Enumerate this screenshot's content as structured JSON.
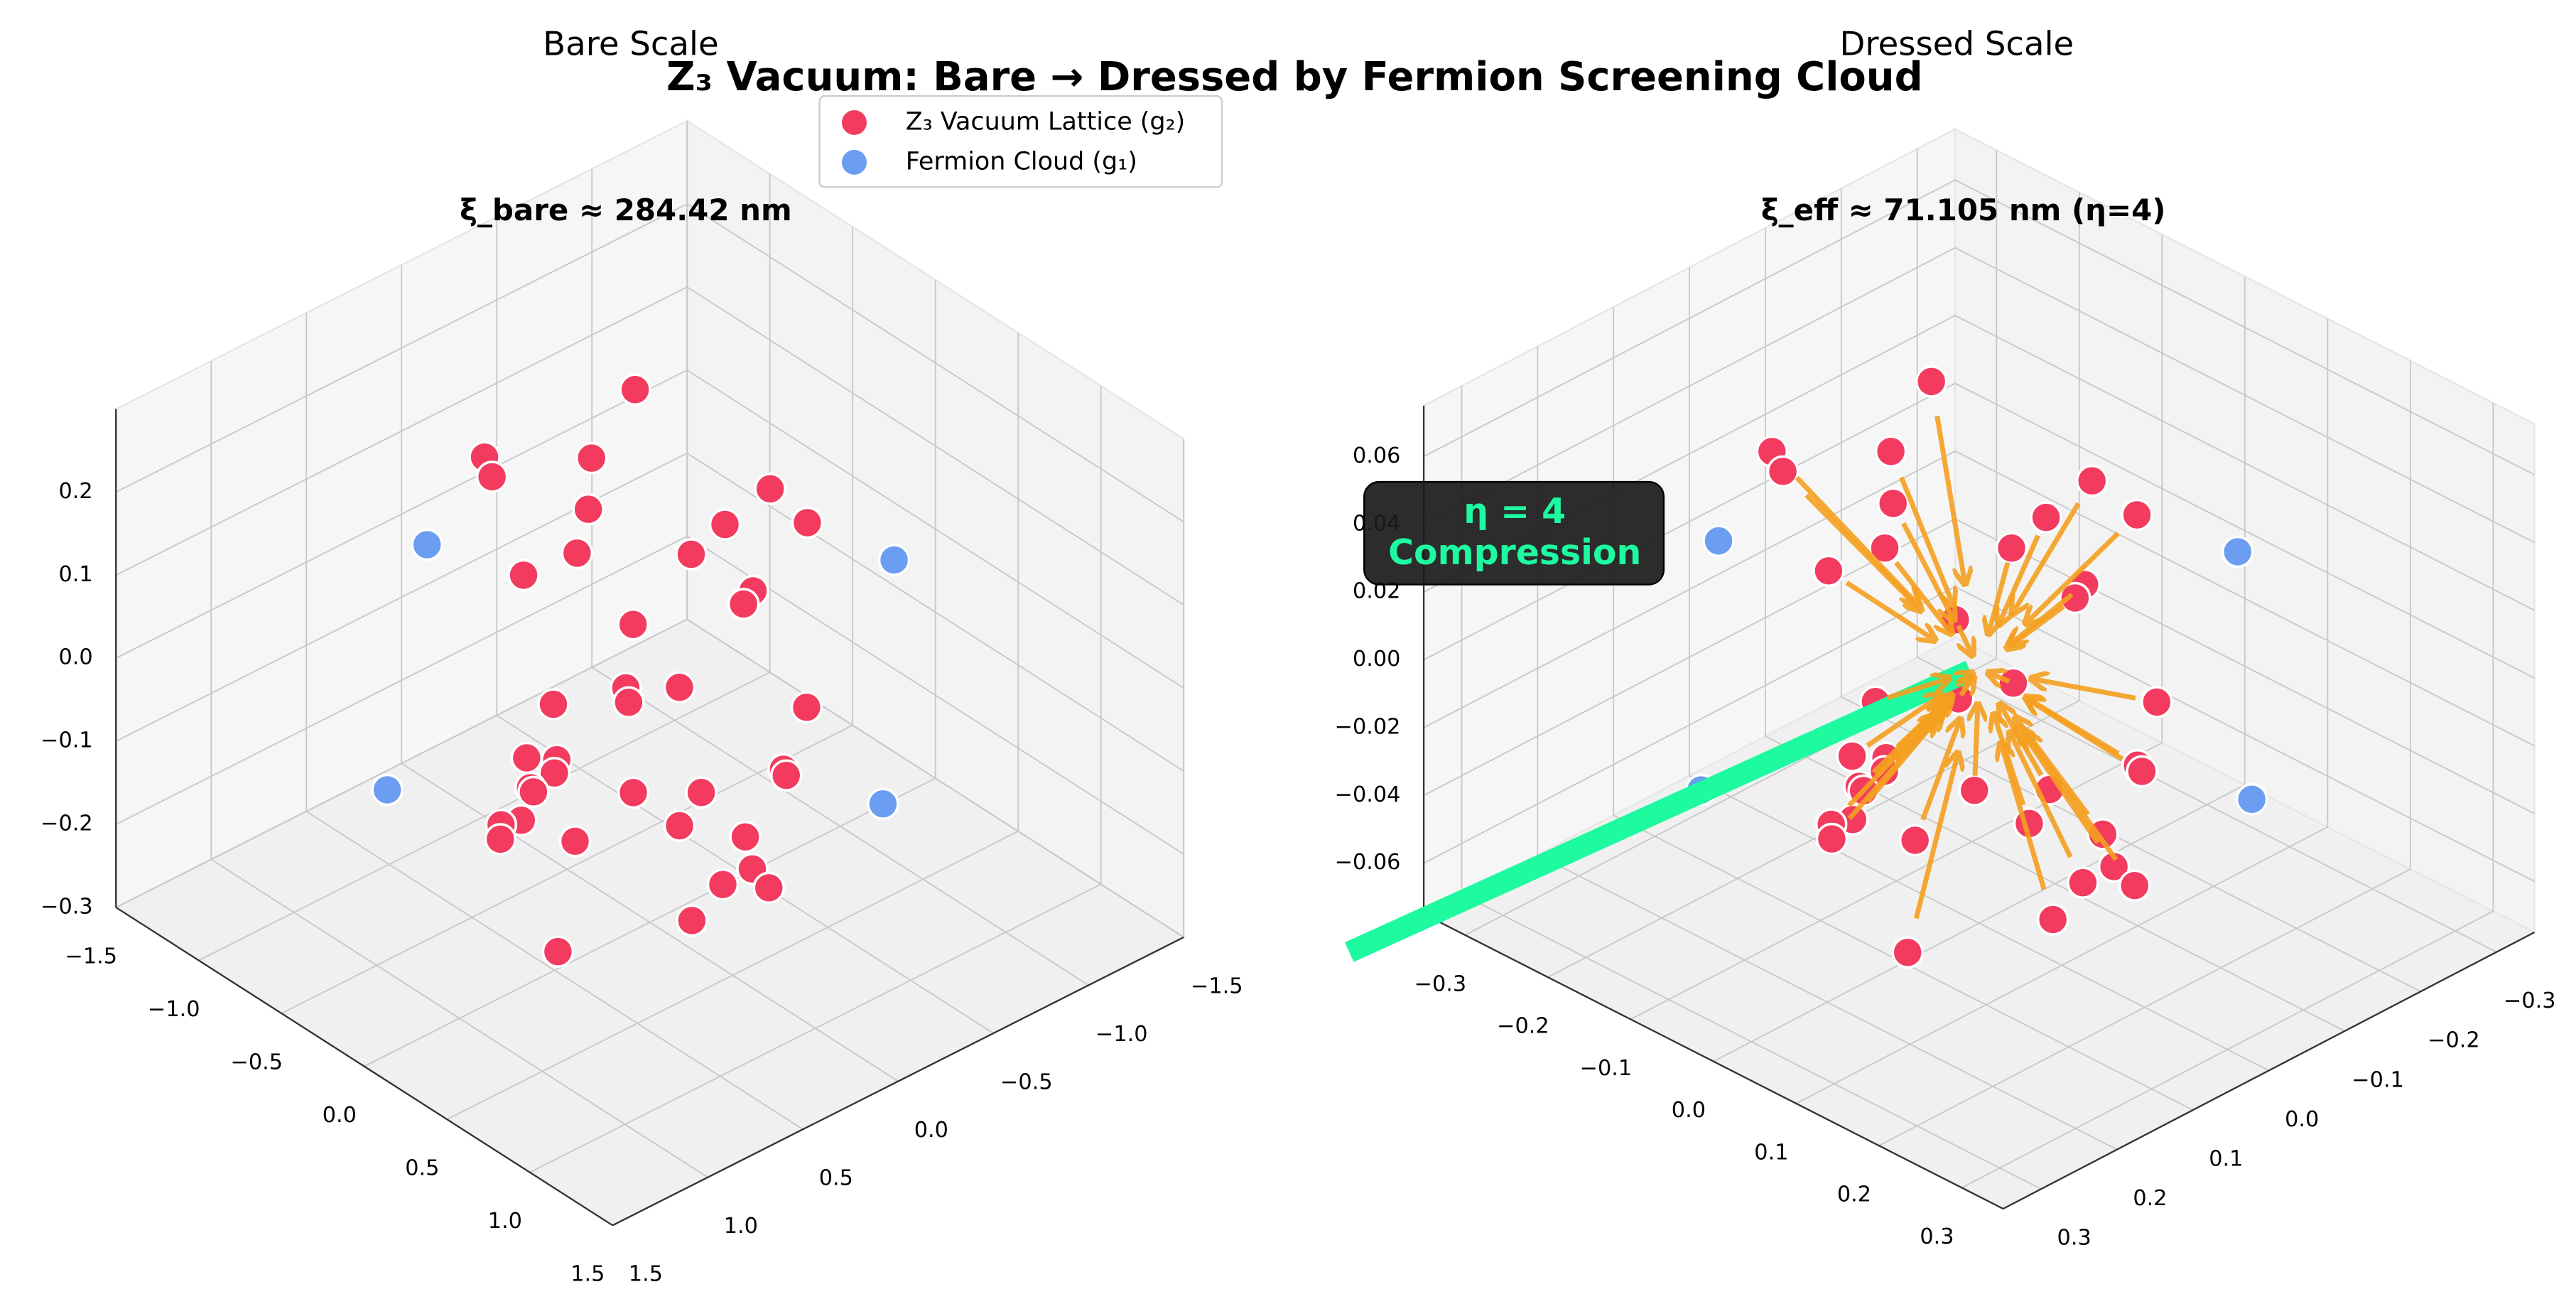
{
  "title": "Z₃ Vacuum: Bare → Dressed by Fermion Screening Cloud",
  "legend": "upper center",
  "chart_data": [
    {
      "type": "scatter3d",
      "title": "Bare Scale",
      "subtitle": "ξ_bare ≈ 284.42 nm",
      "xlim": [
        -1.5,
        1.5
      ],
      "ylim": [
        -1.5,
        1.5
      ],
      "zlim": [
        -0.3,
        0.3
      ],
      "grid": true,
      "xticks": [
        {
          "value": -1.5,
          "label": "−1.5"
        },
        {
          "value": -1,
          "label": "−1.0"
        },
        {
          "value": -0.5,
          "label": "−0.5"
        },
        {
          "value": 0,
          "label": "0.0"
        },
        0.5,
        {
          "value": 1,
          "label": "1.0"
        },
        1.5
      ],
      "yticks": [
        {
          "value": -1.5,
          "label": "−1.5"
        },
        {
          "value": -1,
          "label": "−1.0"
        },
        {
          "value": -0.5,
          "label": "−0.5"
        },
        {
          "value": 0,
          "label": "0.0"
        },
        0.5,
        {
          "value": 1,
          "label": "1.0"
        },
        1.5
      ],
      "zticks": [
        {
          "value": -0.3,
          "label": "−0.3"
        },
        {
          "value": -0.2,
          "label": "−0.2"
        },
        {
          "value": -0.1,
          "label": "−0.1"
        },
        {
          "value": 0,
          "label": "0.0"
        },
        0.1,
        0.2
      ],
      "series": [
        {
          "name": "Z₃ Vacuum Lattice (g₂)",
          "color": "#f23b5f",
          "x": [
            -0.79,
            -1.01,
            -0.93,
            -0.72,
            -0.59,
            -0.52,
            -0.59,
            -0.17,
            -0.19,
            0.02,
            -0.21,
            0.06,
            0.06,
            -0.17,
            -0.03,
            0.01,
            0.11,
            0.51,
            -0.18,
            -0.01,
            -0.1,
            0.01,
            -0.02,
            0.01,
            0.6,
            0.64,
            0.28,
            0.46,
            0.04,
            0.01,
            0.04,
            0.49,
            0.68,
            0.25,
            0.78,
            0.74,
            0.88,
            0.76,
            0.48
          ],
          "y": [
            -0.61,
            -0.01,
            0.02,
            -0.32,
            -0.19,
            -0.07,
            0.15,
            -0.78,
            -0.56,
            -0.81,
            -0.4,
            -0.49,
            -0.44,
            -0.06,
            0.1,
            0.12,
            -0.06,
            -0.38,
            0.35,
            0.48,
            0.56,
            0.51,
            0.61,
            0.62,
            -0.18,
            -0.16,
            0.33,
            0.13,
            0.71,
            0.79,
            0.82,
            0.27,
            0.09,
            0.61,
            0.14,
            0.26,
            0.14,
            0.44,
            0.9
          ],
          "z": [
            0.17,
            0.13,
            0.12,
            0.13,
            0.1,
            0.07,
            0.06,
            0.11,
            0.09,
            0.09,
            0.07,
            0.05,
            0.04,
            0.03,
            -0.01,
            -0.02,
            -0.01,
            -0.02,
            -0.02,
            -0.05,
            -0.05,
            -0.06,
            -0.07,
            -0.07,
            -0.06,
            -0.06,
            -0.07,
            -0.07,
            -0.09,
            -0.09,
            -0.1,
            -0.09,
            -0.1,
            -0.1,
            -0.12,
            -0.13,
            -0.13,
            -0.15,
            -0.17
          ]
        },
        {
          "name": "Fermion Cloud (g₁)",
          "color": "#6b9ef0",
          "x": [
            -0.92,
            0.36,
            -0.39,
            0.96
          ],
          "y": [
            0.37,
            -0.97,
            1.04,
            -0.39
          ],
          "z": [
            0.08,
            0.07,
            -0.07,
            -0.08
          ]
        }
      ]
    },
    {
      "type": "scatter3d",
      "title": "Dressed Scale",
      "subtitle": "ξ_eff ≈ 71.105 nm (η=4)",
      "annotation": [
        "η = 4",
        "Compression"
      ],
      "xlim": [
        -0.35,
        0.35
      ],
      "ylim": [
        -0.35,
        0.35
      ],
      "zlim": [
        -0.075,
        0.075
      ],
      "grid": true,
      "arrows": true,
      "xticks": [
        {
          "value": -0.3,
          "label": "−0.3"
        },
        {
          "value": -0.2,
          "label": "−0.2"
        },
        {
          "value": -0.1,
          "label": "−0.1"
        },
        {
          "value": 0,
          "label": "0.0"
        },
        0.1,
        0.2,
        0.3
      ],
      "yticks": [
        {
          "value": -0.3,
          "label": "−0.3"
        },
        {
          "value": -0.2,
          "label": "−0.2"
        },
        {
          "value": -0.1,
          "label": "−0.1"
        },
        {
          "value": 0,
          "label": "0.0"
        },
        0.1,
        0.2,
        0.3
      ],
      "zticks": [
        {
          "value": -0.06,
          "label": "−0.06"
        },
        {
          "value": -0.04,
          "label": "−0.04"
        },
        {
          "value": -0.02,
          "label": "−0.02"
        },
        {
          "value": 0,
          "label": "0.00"
        },
        0.02,
        0.04,
        0.06
      ],
      "series": [
        {
          "name": "Z₃ Vacuum Lattice (g₂)",
          "color": "#f23b5f",
          "x": [
            -0.1975,
            -0.2525,
            -0.2325,
            -0.18,
            -0.1475,
            -0.13,
            -0.1475,
            -0.0425,
            -0.0475,
            0.005,
            -0.0525,
            0.015,
            0.015,
            -0.0425,
            -0.0075,
            0.0025,
            0.0275,
            0.1275,
            -0.045,
            -0.0025,
            -0.025,
            0.0025,
            -0.005,
            0.0025,
            0.15,
            0.16,
            0.07,
            0.115,
            0.01,
            0.0025,
            0.01,
            0.1225,
            0.17,
            0.0625,
            0.195,
            0.185,
            0.22,
            0.19,
            0.12
          ],
          "y": [
            -0.1525,
            -0.0025,
            0.005,
            -0.08,
            -0.0475,
            -0.0175,
            0.0375,
            -0.195,
            -0.14,
            -0.2025,
            -0.1,
            -0.1225,
            -0.11,
            -0.015,
            0.025,
            0.03,
            -0.015,
            -0.095,
            0.0875,
            0.12,
            0.14,
            0.1275,
            0.1525,
            0.155,
            -0.045,
            -0.04,
            0.0825,
            0.0325,
            0.1775,
            0.1975,
            0.205,
            0.0675,
            0.0225,
            0.1525,
            0.035,
            0.065,
            0.035,
            0.11,
            0.225
          ],
          "z": [
            0.0425,
            0.0325,
            0.03,
            0.0325,
            0.025,
            0.0175,
            0.015,
            0.0275,
            0.0225,
            0.0225,
            0.0175,
            0.0125,
            0.01,
            0.0075,
            -0.0025,
            -0.005,
            -0.0025,
            -0.005,
            -0.005,
            -0.0125,
            -0.0125,
            -0.015,
            -0.0175,
            -0.0175,
            -0.015,
            -0.015,
            -0.0175,
            -0.0175,
            -0.0225,
            -0.0225,
            -0.025,
            -0.0225,
            -0.025,
            -0.025,
            -0.03,
            -0.0325,
            -0.0325,
            -0.0375,
            -0.0425
          ]
        },
        {
          "name": "Fermion Cloud (g₁)",
          "color": "#6b9ef0",
          "x": [
            -0.23,
            0.09,
            -0.0975,
            0.24
          ],
          "y": [
            0.0925,
            -0.2425,
            0.26,
            -0.0975
          ],
          "z": [
            0.02,
            0.0175,
            -0.0175,
            -0.02
          ]
        }
      ]
    }
  ]
}
